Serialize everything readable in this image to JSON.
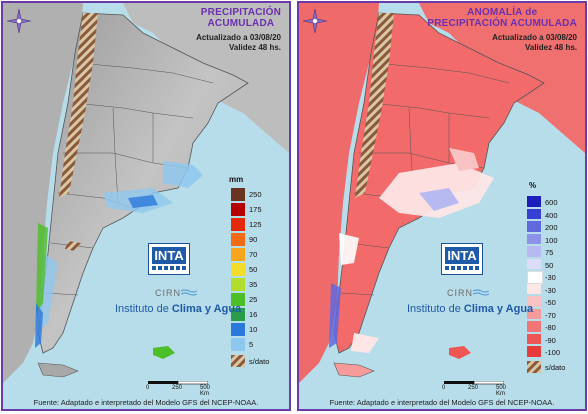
{
  "left_panel": {
    "title_line1": "PRECIPITACIÓN",
    "title_line2": "ACUMULADA",
    "updated": "Actualizado a 03/08/20",
    "validity": "Validez 48 hs.",
    "unit": "mm",
    "legend": [
      {
        "label": "250",
        "color": "#6b3420"
      },
      {
        "label": "175",
        "color": "#b40000"
      },
      {
        "label": "125",
        "color": "#e52a0c"
      },
      {
        "label": "90",
        "color": "#f56a12"
      },
      {
        "label": "70",
        "color": "#f6a51c"
      },
      {
        "label": "50",
        "color": "#f4dc2c"
      },
      {
        "label": "35",
        "color": "#b2dc2e"
      },
      {
        "label": "25",
        "color": "#4cbe28"
      },
      {
        "label": "16",
        "color": "#2a9d4c"
      },
      {
        "label": "10",
        "color": "#2a78dc"
      },
      {
        "label": "5",
        "color": "#8fc8ee"
      }
    ],
    "nodata_label": "s/dato"
  },
  "right_panel": {
    "title_line1": "ANOMALÍA de",
    "title_line2": "PRECIPITACIÓN ACUMULADA",
    "updated": "Actualizado a 03/08/20",
    "validity": "Validez 48 hs.",
    "unit": "%",
    "legend": [
      {
        "label": "600",
        "color": "#1c1ebe"
      },
      {
        "label": "400",
        "color": "#3840d2"
      },
      {
        "label": "200",
        "color": "#6068de"
      },
      {
        "label": "100",
        "color": "#8c92e8"
      },
      {
        "label": "75",
        "color": "#b6baf0"
      },
      {
        "label": "50",
        "color": "#dcdef8"
      },
      {
        "label": "-30",
        "color": "#ffffff"
      },
      {
        "label": "-30",
        "color": "#fde6e6"
      },
      {
        "label": "-50",
        "color": "#f9c2c2"
      },
      {
        "label": "-70",
        "color": "#f69a9a"
      },
      {
        "label": "-80",
        "color": "#f27676"
      },
      {
        "label": "-90",
        "color": "#ee5656"
      },
      {
        "label": "-100",
        "color": "#e83c3c"
      }
    ],
    "nodata_label": "s/dato"
  },
  "branding": {
    "inta": "INTA",
    "cirn": "CIRN",
    "instituto_prefix": "Instituto de",
    "instituto_bold": "Clima y Agua"
  },
  "scale": {
    "ticks": [
      "0",
      "250",
      "500 Km"
    ]
  },
  "source": "Fuente: Adaptado e interpretado del Modelo GFS del NCEP-NOAA.",
  "colors": {
    "frame": "#6a3aa8",
    "title": "#6b2fb0",
    "land_left": "#b4b4b4",
    "land_right": "#f26a6a",
    "ocean": "#b7dcea",
    "nodata": "#8a5a3a"
  },
  "icons": [
    "compass-rose-icon",
    "inta-logo",
    "cirn-wave-icon"
  ]
}
